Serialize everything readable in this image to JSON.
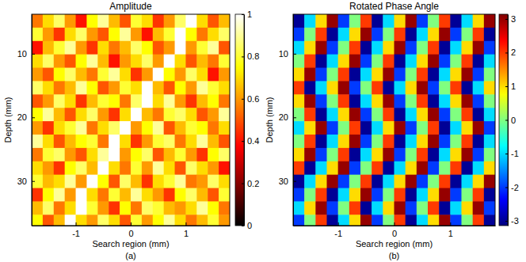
{
  "chart_data": [
    {
      "type": "heatmap",
      "title": "Amplitude",
      "x_label": "Search region (mm)",
      "y_label": "Depth (mm)",
      "caption": "(a)",
      "x": [
        -1.7,
        -1.5,
        -1.3,
        -1.1,
        -0.9,
        -0.7,
        -0.5,
        -0.3,
        -0.1,
        0.1,
        0.3,
        0.5,
        0.7,
        0.9,
        1.1,
        1.3,
        1.5,
        1.7
      ],
      "y": [
        4.85,
        6.95,
        9.05,
        11.15,
        13.25,
        15.35,
        17.45,
        19.55,
        21.65,
        23.75,
        25.85,
        27.95,
        30.05,
        32.15,
        34.25,
        36.35
      ],
      "z": [
        [
          0.55,
          0.7,
          0.85,
          0.6,
          0.4,
          0.75,
          0.9,
          0.65,
          0.5,
          0.8,
          0.7,
          0.45,
          0.6,
          0.85,
          1.0,
          0.7,
          0.5,
          0.65
        ],
        [
          0.8,
          0.6,
          0.45,
          0.7,
          0.85,
          0.6,
          0.5,
          0.75,
          0.9,
          0.6,
          0.4,
          0.65,
          0.8,
          1.0,
          0.75,
          0.55,
          0.7,
          0.85
        ],
        [
          0.4,
          0.65,
          0.8,
          0.9,
          0.6,
          0.45,
          0.7,
          0.55,
          0.65,
          0.85,
          0.75,
          0.5,
          0.6,
          1.0,
          0.6,
          0.8,
          0.9,
          0.5
        ],
        [
          0.7,
          0.85,
          0.6,
          0.5,
          0.75,
          0.9,
          0.65,
          0.4,
          0.6,
          0.7,
          0.85,
          0.6,
          1.0,
          0.7,
          0.5,
          0.65,
          0.55,
          0.8
        ],
        [
          0.6,
          0.5,
          0.75,
          0.85,
          0.65,
          0.55,
          0.8,
          0.9,
          0.7,
          0.45,
          0.6,
          1.0,
          0.75,
          0.6,
          0.85,
          0.7,
          0.4,
          0.6
        ],
        [
          0.85,
          0.7,
          0.55,
          0.65,
          0.9,
          0.75,
          0.5,
          0.6,
          0.8,
          0.7,
          1.0,
          0.65,
          0.5,
          0.75,
          0.6,
          0.9,
          0.8,
          0.7
        ],
        [
          0.5,
          0.6,
          0.85,
          0.7,
          0.45,
          0.65,
          0.8,
          0.75,
          0.55,
          0.85,
          1.0,
          0.7,
          0.9,
          0.6,
          0.45,
          0.65,
          0.75,
          0.55
        ],
        [
          0.75,
          0.9,
          0.65,
          0.5,
          0.7,
          0.85,
          0.6,
          0.45,
          0.7,
          1.0,
          0.65,
          0.55,
          0.8,
          0.85,
          0.7,
          0.5,
          0.6,
          0.9
        ],
        [
          0.6,
          0.45,
          0.7,
          0.8,
          0.9,
          0.55,
          0.7,
          0.85,
          1.0,
          0.6,
          0.75,
          0.9,
          0.5,
          0.65,
          0.8,
          0.75,
          0.55,
          0.7
        ],
        [
          0.9,
          0.7,
          0.5,
          0.65,
          0.75,
          0.8,
          0.55,
          1.0,
          0.7,
          0.45,
          0.6,
          0.8,
          0.85,
          0.55,
          0.7,
          0.9,
          0.65,
          0.5
        ],
        [
          0.55,
          0.8,
          0.85,
          0.6,
          0.5,
          0.7,
          0.9,
          1.0,
          0.6,
          0.75,
          0.85,
          0.5,
          0.65,
          0.8,
          0.6,
          0.45,
          0.75,
          0.85
        ],
        [
          0.7,
          0.6,
          0.45,
          0.75,
          0.85,
          0.65,
          1.0,
          0.7,
          0.55,
          0.8,
          0.6,
          0.9,
          0.7,
          0.5,
          0.85,
          0.7,
          0.6,
          0.4
        ],
        [
          0.8,
          0.65,
          0.7,
          0.9,
          0.6,
          1.0,
          0.75,
          0.5,
          0.85,
          0.65,
          0.45,
          0.7,
          0.8,
          0.9,
          0.55,
          0.6,
          0.85,
          0.7
        ],
        [
          0.45,
          0.75,
          0.9,
          0.6,
          1.0,
          0.7,
          0.55,
          0.8,
          0.65,
          0.9,
          0.7,
          0.6,
          0.45,
          0.75,
          0.85,
          0.65,
          0.5,
          0.8
        ],
        [
          0.65,
          0.85,
          0.55,
          0.7,
          1.0,
          0.8,
          0.6,
          0.45,
          0.75,
          0.55,
          0.85,
          0.8,
          0.65,
          0.6,
          0.7,
          0.9,
          0.75,
          0.55
        ],
        [
          0.75,
          0.5,
          0.65,
          1.0,
          0.7,
          0.6,
          0.85,
          0.7,
          0.5,
          0.8,
          0.6,
          0.75,
          0.9,
          0.7,
          0.55,
          0.65,
          0.8,
          0.6
        ]
      ],
      "xlim": [
        -1.8,
        1.8
      ],
      "ylim": [
        3.8,
        37.0
      ],
      "xticks": [
        -1,
        0,
        1
      ],
      "yticks": [
        10,
        20,
        30
      ],
      "colorbar_range": [
        0,
        1
      ],
      "colorbar_ticks": [
        0,
        0.2,
        0.4,
        0.6,
        0.8,
        1
      ]
    },
    {
      "type": "heatmap",
      "title": "Rotated Phase Angle",
      "x_label": "Search region (mm)",
      "y_label": "Depth (mm)",
      "caption": "(b)",
      "x": [
        -1.7,
        -1.5,
        -1.3,
        -1.1,
        -0.9,
        -0.7,
        -0.5,
        -0.3,
        -0.1,
        0.1,
        0.3,
        0.5,
        0.7,
        0.9,
        1.1,
        1.3,
        1.5,
        1.7
      ],
      "y": [
        4.85,
        6.95,
        9.05,
        11.15,
        13.25,
        15.35,
        17.45,
        19.55,
        21.65,
        23.75,
        25.85,
        27.95,
        30.05,
        32.15,
        34.25,
        36.35
      ],
      "z": [
        [
          -3,
          -1,
          1,
          3,
          -2,
          0,
          2,
          -3,
          -1,
          1,
          3,
          -2,
          0,
          2,
          -3,
          -1,
          1,
          3
        ],
        [
          -2,
          0,
          2,
          -3,
          -1,
          1,
          3,
          -2,
          0,
          2,
          -3,
          -1,
          1,
          3,
          -2,
          0,
          2,
          -3
        ],
        [
          -1,
          1,
          3,
          -2,
          0,
          2,
          -3,
          -1,
          1,
          3,
          -2,
          0,
          2,
          -3,
          -1,
          1,
          3,
          -2
        ],
        [
          0,
          2,
          -3,
          -1,
          1,
          3,
          -2,
          0,
          2,
          -3,
          -1,
          1,
          3,
          -2,
          0,
          2,
          -3,
          -1
        ],
        [
          1,
          3,
          -2,
          0,
          2,
          -3,
          -1,
          1,
          3,
          -2,
          0,
          2,
          -3,
          -1,
          1,
          3,
          -2,
          0
        ],
        [
          2,
          -3,
          -1,
          1,
          3,
          -2,
          0,
          2,
          -3,
          -1,
          1,
          3,
          -2,
          0,
          2,
          -3,
          -1,
          1
        ],
        [
          1,
          3,
          -2,
          0,
          2,
          -3,
          -1,
          1,
          3,
          -2,
          0,
          2,
          -3,
          -1,
          1,
          3,
          -2,
          0
        ],
        [
          0,
          2,
          -3,
          -1,
          1,
          3,
          -2,
          0,
          2,
          -3,
          -1,
          1,
          3,
          -2,
          0,
          2,
          -3,
          -1
        ],
        [
          -1,
          1,
          3,
          -2,
          0,
          2,
          -3,
          -1,
          1,
          3,
          -2,
          0,
          2,
          -3,
          -1,
          1,
          3,
          -2
        ],
        [
          0,
          2,
          -3,
          -1,
          1,
          3,
          -2,
          0,
          2,
          -3,
          -1,
          1,
          3,
          -2,
          0,
          2,
          -3,
          -1
        ],
        [
          1,
          3,
          -2,
          0,
          2,
          -3,
          -1,
          1,
          3,
          -2,
          0,
          2,
          -3,
          -1,
          1,
          3,
          -2,
          0
        ],
        [
          2,
          -3,
          -1,
          1,
          3,
          -2,
          0,
          2,
          -3,
          -1,
          1,
          3,
          -2,
          0,
          2,
          -3,
          -1,
          1
        ],
        [
          -3,
          -1,
          1,
          3,
          -2,
          0,
          2,
          -3,
          -1,
          1,
          3,
          -2,
          0,
          2,
          -3,
          -1,
          1,
          3
        ],
        [
          -2,
          0,
          2,
          -3,
          -1,
          1,
          3,
          -2,
          0,
          2,
          -3,
          -1,
          1,
          3,
          -2,
          0,
          2,
          -3
        ],
        [
          -1,
          1,
          3,
          -2,
          0,
          2,
          -3,
          -1,
          1,
          3,
          -2,
          0,
          2,
          -3,
          -1,
          1,
          3,
          -2
        ],
        [
          -2,
          0,
          2,
          -3,
          -1,
          1,
          3,
          -2,
          0,
          2,
          -3,
          -1,
          1,
          3,
          -2,
          0,
          2,
          -3
        ]
      ],
      "xlim": [
        -1.8,
        1.8
      ],
      "ylim": [
        3.8,
        37.0
      ],
      "xticks": [
        -1,
        0,
        1
      ],
      "yticks": [
        10,
        20,
        30
      ],
      "colorbar_range": [
        -3.14,
        3.14
      ],
      "colorbar_ticks": [
        -3,
        -2,
        -1,
        0,
        1,
        2,
        3
      ]
    }
  ]
}
